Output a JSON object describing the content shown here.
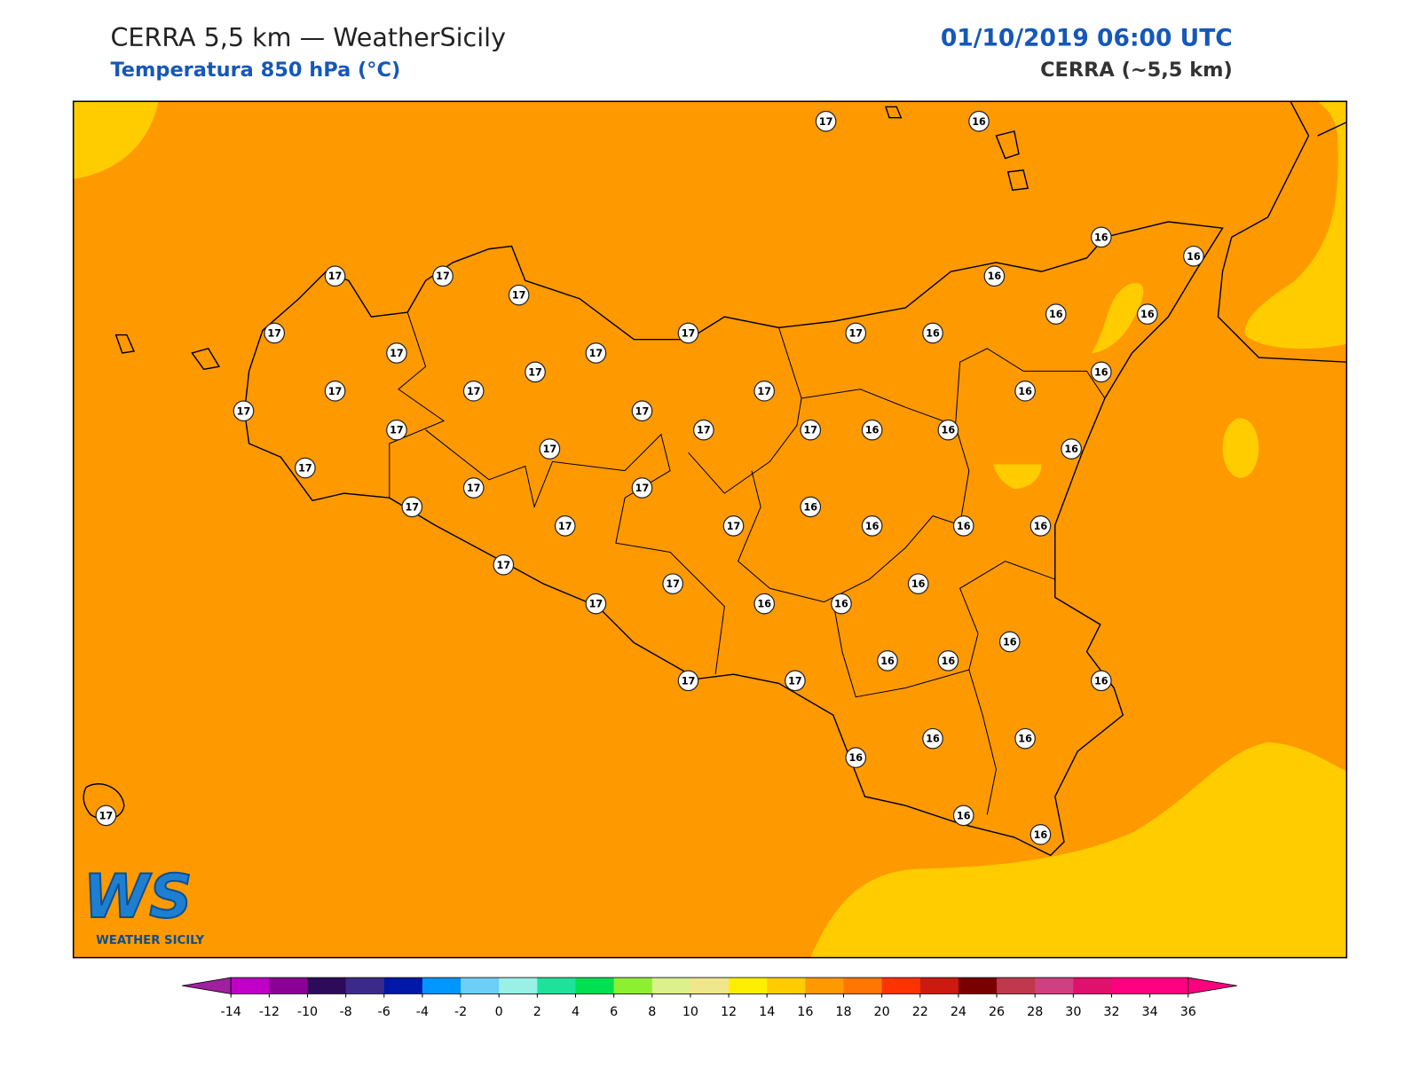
{
  "header": {
    "title": "CERRA 5,5 km — WeatherSicily",
    "subtitle": "Temperatura 850 hPa (°C)",
    "datetime": "01/10/2019 06:00 UTC",
    "model": "CERRA (~5,5 km)"
  },
  "stations": [
    17,
    16,
    16,
    16,
    17,
    17,
    17,
    16,
    16,
    16,
    17,
    17,
    17,
    16,
    17,
    17,
    17,
    16,
    17,
    17,
    17,
    16,
    17,
    17,
    17,
    17,
    17,
    16,
    16,
    17,
    16,
    17,
    17,
    17,
    17,
    16,
    17,
    17,
    16,
    16,
    16,
    17,
    16,
    17,
    17,
    16,
    16,
    16,
    16,
    16,
    17,
    17,
    16,
    16,
    16,
    16,
    17,
    16,
    16
  ],
  "colorbar": {
    "ticks": [
      -14,
      -12,
      -10,
      -8,
      -6,
      -4,
      -2,
      0,
      2,
      4,
      6,
      8,
      10,
      12,
      14,
      16,
      18,
      20,
      22,
      24,
      26,
      28,
      30,
      32,
      34,
      36
    ],
    "colors": [
      "#c000c8",
      "#8a0096",
      "#2e0a5a",
      "#3c2a8a",
      "#0018a8",
      "#0096ff",
      "#6ccff6",
      "#98f0e6",
      "#1ee29a",
      "#00e050",
      "#8cf030",
      "#dcf08c",
      "#f0e68c",
      "#ffee00",
      "#ffcc00",
      "#ff9900",
      "#ff7700",
      "#ff3300",
      "#cc1a10",
      "#7a0000",
      "#c0384c",
      "#d04080",
      "#e0106c",
      "#ff0080",
      "#ff0080"
    ],
    "under_color": "#a020a0",
    "over_color": "#ff0080"
  },
  "logo": {
    "mark": "WS",
    "name": "WEATHER SICILY"
  }
}
